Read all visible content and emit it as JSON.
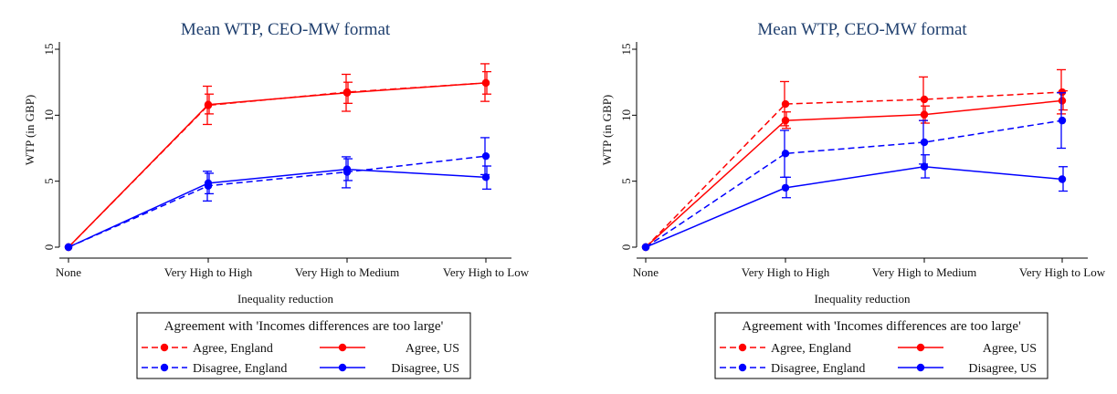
{
  "chart_data": [
    {
      "type": "line",
      "title": "Mean WTP, CEO-MW format",
      "xlabel": "Inequality reduction",
      "ylabel": "WTP (in GBP)",
      "categories": [
        "None",
        "Very High to High",
        "Very High to Medium",
        "Very High to Low"
      ],
      "ylim": [
        0,
        15
      ],
      "yticks": [
        0,
        5,
        10,
        15
      ],
      "grid": false,
      "legend": {
        "title": "Agreement with 'Incomes differences are too large'",
        "placement": "bottom"
      },
      "series": [
        {
          "name": "Agree, England",
          "color": "#ff0000",
          "dash": true,
          "values": [
            0,
            10.75,
            11.75,
            12.45
          ],
          "err_low": [
            0,
            9.3,
            10.3,
            11.05
          ],
          "err_high": [
            0,
            12.2,
            13.1,
            13.9
          ]
        },
        {
          "name": "Agree, US",
          "color": "#ff0000",
          "dash": false,
          "values": [
            0,
            10.8,
            11.7,
            12.45
          ],
          "err_low": [
            0,
            10.1,
            10.9,
            11.6
          ],
          "err_high": [
            0,
            11.6,
            12.5,
            13.3
          ]
        },
        {
          "name": "Disagree, England",
          "color": "#0000ff",
          "dash": true,
          "values": [
            0,
            4.65,
            5.7,
            6.9
          ],
          "err_low": [
            0,
            3.5,
            4.5,
            5.5
          ],
          "err_high": [
            0,
            5.75,
            6.85,
            8.3
          ]
        },
        {
          "name": "Disagree, US",
          "color": "#0000ff",
          "dash": false,
          "values": [
            0,
            4.85,
            5.9,
            5.3
          ],
          "err_low": [
            0,
            4.05,
            5.05,
            4.4
          ],
          "err_high": [
            0,
            5.6,
            6.7,
            6.15
          ]
        }
      ]
    },
    {
      "type": "line",
      "title": "Mean WTP, CEO-MW format",
      "xlabel": "Inequality reduction",
      "ylabel": "WTP (in GBP)",
      "categories": [
        "None",
        "Very High to High",
        "Very High to Medium",
        "Very High to Low"
      ],
      "ylim": [
        0,
        15
      ],
      "yticks": [
        0,
        5,
        10,
        15
      ],
      "grid": false,
      "legend": {
        "title": "Agreement with 'Incomes differences are too large'",
        "placement": "bottom"
      },
      "series": [
        {
          "name": "Agree, England",
          "color": "#ff0000",
          "dash": true,
          "values": [
            0,
            10.85,
            11.2,
            11.75
          ],
          "err_low": [
            0,
            9.2,
            9.6,
            10.1
          ],
          "err_high": [
            0,
            12.55,
            12.9,
            13.45
          ]
        },
        {
          "name": "Agree, US",
          "color": "#ff0000",
          "dash": false,
          "values": [
            0,
            9.6,
            10.05,
            11.1
          ],
          "err_low": [
            0,
            9.0,
            9.4,
            10.4
          ],
          "err_high": [
            0,
            10.25,
            10.7,
            11.85
          ]
        },
        {
          "name": "Disagree, England",
          "color": "#0000ff",
          "dash": true,
          "values": [
            0,
            7.1,
            7.95,
            9.6
          ],
          "err_low": [
            0,
            5.3,
            6.3,
            7.5
          ],
          "err_high": [
            0,
            8.85,
            9.6,
            11.7
          ]
        },
        {
          "name": "Disagree, US",
          "color": "#0000ff",
          "dash": false,
          "values": [
            0,
            4.5,
            6.1,
            5.15
          ],
          "err_low": [
            0,
            3.75,
            5.25,
            4.25
          ],
          "err_high": [
            0,
            5.3,
            7.0,
            6.1
          ]
        }
      ]
    }
  ]
}
